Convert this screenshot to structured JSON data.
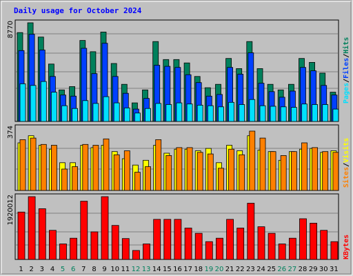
{
  "title": "Daily usage for October 2024",
  "colors": {
    "background": "#c0c0c0",
    "title": "#0000ff",
    "hits": "#00805c",
    "files": "#0040ff",
    "pages": "#00e0ff",
    "visits": "#ffff00",
    "sites": "#ff8000",
    "kbytes": "#ff0000",
    "weekday_label": "#000000",
    "weekend_label": "#00805c"
  },
  "panels": {
    "hits_panel": {
      "max_label": "8770",
      "legend": [
        "Pages",
        "Files",
        "Hits"
      ]
    },
    "visits_panel": {
      "max_label": "374",
      "legend": [
        "Sites",
        "Visits"
      ]
    },
    "kbytes_panel": {
      "max_label": "1920012",
      "legend": [
        "KBytes"
      ]
    }
  },
  "chart_data": {
    "type": "bar",
    "title": "Daily usage for October 2024",
    "categories": [
      "1",
      "2",
      "3",
      "4",
      "5",
      "6",
      "7",
      "8",
      "9",
      "10",
      "11",
      "12",
      "13",
      "14",
      "15",
      "16",
      "17",
      "18",
      "19",
      "20",
      "21",
      "22",
      "23",
      "24",
      "25",
      "26",
      "27",
      "28",
      "29",
      "30",
      "31"
    ],
    "weekend_days": [
      "5",
      "6",
      "12",
      "13",
      "19",
      "20",
      "26",
      "27"
    ],
    "grid": true,
    "series": [
      {
        "name": "Hits",
        "panel": "hits_panel",
        "ylim": [
          0,
          8770
        ],
        "values": [
          7900,
          8770,
          7500,
          5100,
          2800,
          3100,
          7200,
          6200,
          7950,
          5150,
          3300,
          1650,
          2800,
          7100,
          5500,
          5500,
          5200,
          4000,
          3000,
          3300,
          5600,
          4700,
          7100,
          4700,
          3300,
          2800,
          3300,
          5600,
          5250,
          4300,
          2600
        ]
      },
      {
        "name": "Files",
        "panel": "hits_panel",
        "ylim": [
          0,
          8770
        ],
        "values": [
          6300,
          7750,
          6350,
          4000,
          2350,
          2250,
          6500,
          4250,
          6950,
          4000,
          2500,
          1100,
          2050,
          5000,
          4900,
          4800,
          4150,
          3450,
          2250,
          2400,
          4800,
          4200,
          6100,
          3400,
          2650,
          2150,
          2700,
          4800,
          4500,
          3200,
          2350
        ]
      },
      {
        "name": "Pages",
        "panel": "hits_panel",
        "ylim": [
          0,
          8770
        ],
        "values": [
          3350,
          3200,
          3550,
          2600,
          1400,
          1150,
          1850,
          1600,
          2200,
          1650,
          1200,
          750,
          1150,
          1600,
          1500,
          1650,
          1550,
          1450,
          1400,
          1300,
          1700,
          1500,
          1950,
          1400,
          1350,
          1300,
          1250,
          1550,
          1500,
          1500,
          1100
        ]
      },
      {
        "name": "Visits",
        "panel": "visits_panel",
        "ylim": [
          0,
          374
        ],
        "values": [
          300,
          345,
          285,
          260,
          175,
          175,
          285,
          270,
          285,
          245,
          200,
          160,
          190,
          285,
          235,
          260,
          260,
          250,
          265,
          175,
          285,
          250,
          345,
          255,
          245,
          190,
          245,
          260,
          265,
          240,
          250
        ]
      },
      {
        "name": "Sites",
        "panel": "visits_panel",
        "ylim": [
          0,
          374
        ],
        "values": [
          320,
          330,
          290,
          285,
          135,
          150,
          290,
          285,
          325,
          225,
          250,
          115,
          150,
          320,
          220,
          270,
          270,
          240,
          230,
          140,
          260,
          225,
          374,
          330,
          245,
          220,
          245,
          300,
          270,
          245,
          240
        ]
      },
      {
        "name": "KBytes",
        "panel": "kbytes_panel",
        "ylim": [
          0,
          1920012
        ],
        "values": [
          1450000,
          1920012,
          1550000,
          890000,
          475000,
          650000,
          1780000,
          845000,
          1920012,
          1040000,
          640000,
          275000,
          475000,
          1225000,
          1225000,
          1225000,
          960000,
          800000,
          545000,
          650000,
          1225000,
          960000,
          1720000,
          1000000,
          800000,
          475000,
          650000,
          1245000,
          1110000,
          890000,
          545000
        ]
      }
    ]
  }
}
